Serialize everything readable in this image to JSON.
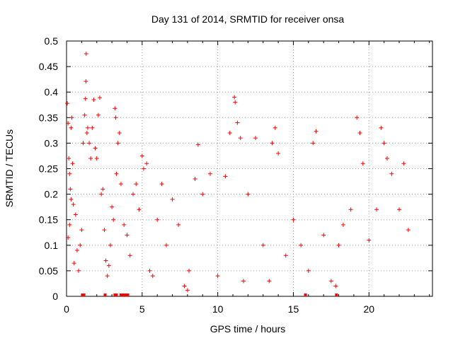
{
  "chart_data": {
    "type": "scatter",
    "title": "Day 131 of 2014, SRMTID for receiver onsa",
    "xlabel": "GPS time / hours",
    "ylabel": "SRMTID / TECUs",
    "xlim": [
      0,
      24.2
    ],
    "ylim": [
      0,
      0.5
    ],
    "x_ticks": [
      0,
      5,
      10,
      15,
      20
    ],
    "x_tick_labels": [
      "0",
      "5",
      "10",
      "15",
      "20"
    ],
    "y_ticks": [
      0,
      0.05,
      0.1,
      0.15,
      0.2,
      0.25,
      0.3,
      0.35,
      0.4,
      0.45,
      0.5
    ],
    "y_tick_labels": [
      "0",
      "0.05",
      "0.1",
      "0.15",
      "0.2",
      "0.25",
      "0.3",
      "0.35",
      "0.4",
      "0.45",
      "0.5"
    ],
    "grid": true,
    "marker": "+",
    "marker_color": "#ff0000",
    "series": [
      {
        "name": "SRMTID",
        "points": [
          [
            0.05,
            0.378
          ],
          [
            0.1,
            0.339
          ],
          [
            0.15,
            0.27
          ],
          [
            0.2,
            0.24
          ],
          [
            0.3,
            0.33
          ],
          [
            0.35,
            0.35
          ],
          [
            0.4,
            0.26
          ],
          [
            0.25,
            0.21
          ],
          [
            0.3,
            0.19
          ],
          [
            0.45,
            0.18
          ],
          [
            0.1,
            0.115
          ],
          [
            0.2,
            0.14
          ],
          [
            0.5,
            0.065
          ],
          [
            0.6,
            0.16
          ],
          [
            0.7,
            0.09
          ],
          [
            0.8,
            0.05
          ],
          [
            0.9,
            0.1
          ],
          [
            1.0,
            0.13
          ],
          [
            1.1,
            0.3
          ],
          [
            1.2,
            0.355
          ],
          [
            1.25,
            0.387
          ],
          [
            1.3,
            0.475
          ],
          [
            1.28,
            0.421
          ],
          [
            1.35,
            0.32
          ],
          [
            1.4,
            0.33
          ],
          [
            1.5,
            0.3
          ],
          [
            1.6,
            0.27
          ],
          [
            1.7,
            0.33
          ],
          [
            1.8,
            0.385
          ],
          [
            1.9,
            0.29
          ],
          [
            2.0,
            0.27
          ],
          [
            2.1,
            0.355
          ],
          [
            2.2,
            0.389
          ],
          [
            2.3,
            0.2
          ],
          [
            2.4,
            0.21
          ],
          [
            2.5,
            0.13
          ],
          [
            2.6,
            0.07
          ],
          [
            2.7,
            0.04
          ],
          [
            2.8,
            0.06
          ],
          [
            2.9,
            0.1
          ],
          [
            3.0,
            0.175
          ],
          [
            3.1,
            0.15
          ],
          [
            3.2,
            0.368
          ],
          [
            3.25,
            0.35
          ],
          [
            3.3,
            0.24
          ],
          [
            3.4,
            0.3
          ],
          [
            3.5,
            0.32
          ],
          [
            3.6,
            0.22
          ],
          [
            3.8,
            0.14
          ],
          [
            4.0,
            0.12
          ],
          [
            4.2,
            0.08
          ],
          [
            4.4,
            0.2
          ],
          [
            4.6,
            0.22
          ],
          [
            4.8,
            0.17
          ],
          [
            5.0,
            0.275
          ],
          [
            5.1,
            0.25
          ],
          [
            5.3,
            0.26
          ],
          [
            5.5,
            0.05
          ],
          [
            5.7,
            0.04
          ],
          [
            6.0,
            0.15
          ],
          [
            6.3,
            0.22
          ],
          [
            6.6,
            0.1
          ],
          [
            7.0,
            0.19
          ],
          [
            7.4,
            0.14
          ],
          [
            7.8,
            0.02
          ],
          [
            8.0,
            0.012
          ],
          [
            8.1,
            0.05
          ],
          [
            8.5,
            0.23
          ],
          [
            8.7,
            0.297
          ],
          [
            9.0,
            0.2
          ],
          [
            9.5,
            0.24
          ],
          [
            10.0,
            0.04
          ],
          [
            10.5,
            0.235
          ],
          [
            10.8,
            0.32
          ],
          [
            11.1,
            0.39
          ],
          [
            11.15,
            0.38
          ],
          [
            11.3,
            0.34
          ],
          [
            11.5,
            0.31
          ],
          [
            11.7,
            0.03
          ],
          [
            12.0,
            0.2
          ],
          [
            12.5,
            0.31
          ],
          [
            13.0,
            0.1
          ],
          [
            13.4,
            0.03
          ],
          [
            13.6,
            0.3
          ],
          [
            13.8,
            0.33
          ],
          [
            14.0,
            0.28
          ],
          [
            14.5,
            0.08
          ],
          [
            15.0,
            0.15
          ],
          [
            15.5,
            0.1
          ],
          [
            16.0,
            0.05
          ],
          [
            16.3,
            0.3
          ],
          [
            16.5,
            0.323
          ],
          [
            17.0,
            0.12
          ],
          [
            17.5,
            0.03
          ],
          [
            17.8,
            0.02
          ],
          [
            18.0,
            0.1
          ],
          [
            18.3,
            0.14
          ],
          [
            18.8,
            0.17
          ],
          [
            19.2,
            0.35
          ],
          [
            19.4,
            0.32
          ],
          [
            19.6,
            0.26
          ],
          [
            20.0,
            0.11
          ],
          [
            20.5,
            0.17
          ],
          [
            20.8,
            0.33
          ],
          [
            21.0,
            0.3
          ],
          [
            21.2,
            0.27
          ],
          [
            21.5,
            0.24
          ],
          [
            22.0,
            0.17
          ],
          [
            22.3,
            0.26
          ],
          [
            22.6,
            0.13
          ]
        ],
        "zero_points_x": [
          1.05,
          1.15,
          2.55,
          3.2,
          3.3,
          3.6,
          3.7,
          3.75,
          3.8,
          3.85,
          3.9,
          3.95,
          4.05,
          15.8,
          17.85
        ]
      }
    ]
  }
}
